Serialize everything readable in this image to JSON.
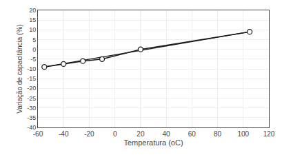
{
  "chart_data": {
    "type": "line",
    "xlabel": "Temperatura (oC)",
    "ylabel": "Variação de capacitância (%)",
    "series": [
      {
        "x": [
          -55,
          105
        ],
        "values": [
          -9,
          9
        ],
        "color": "#1a1a1a"
      },
      {
        "x": [
          -55,
          -40,
          -25,
          -10,
          20,
          105
        ],
        "values": [
          -9,
          -7.5,
          -6,
          -5,
          0,
          9
        ],
        "color": "#1a1a1a",
        "marker": "open circle"
      }
    ],
    "xlim": [
      -60,
      120
    ],
    "ylim": [
      -40,
      20
    ],
    "xticks": [
      -60,
      -40,
      -20,
      0,
      20,
      40,
      60,
      80,
      100,
      120
    ],
    "yticks": [
      20,
      15,
      10,
      5,
      0,
      -5,
      -10,
      -15,
      -20,
      -25,
      -30,
      -35,
      -40
    ],
    "grid": true
  }
}
